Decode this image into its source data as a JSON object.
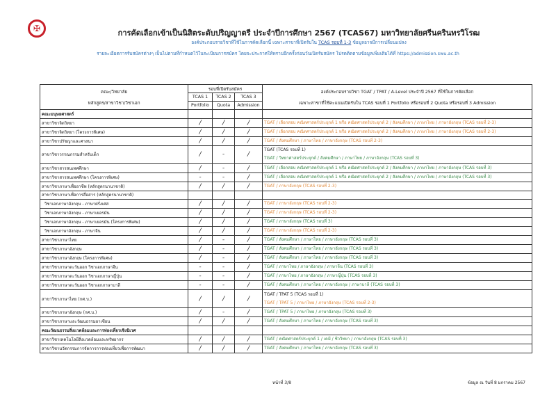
{
  "header": {
    "logo_text": "มศว",
    "title": "การคัดเลือกเข้าเป็นนิสิตระดับปริญญาตรี ประจำปีการศึกษา 2567 (TCAS67)  มหาวิทยาลัยศรีนครินทรวิโรฒ",
    "sub1_a": "องค์ประกอบรายวิชาที่ใช้ในการคัดเลือกนี้ เฉพาะสาขาที่เปิดรับใน ",
    "sub1_link": "TCAS รอบที่ 1-3",
    "sub1_b": " ข้อมูลอาจมีการเปลี่ยนแปลง",
    "sub2": "รายละเอียดการรับสมัครต่างๆ เป็นไปตามที่กำหนดไว้ในระเบียบการสมัคร โดยจะประกาศให้ทราบอีกครั้งก่อนวันเปิดรับสมัคร  โปรดติดตามข้อมูลเพิ่มเติมได้ที่ https://admission.swu.ac.th"
  },
  "table_header": {
    "col1_a": "คณะ/วิทยาลัย",
    "col1_b": "หลักสูตร/สาขาวิชา/วิชาเอก",
    "rounds": "รอบที่เปิดรับสมัคร",
    "t1": "TCAS 1",
    "t2": "TCAS 2",
    "t3": "TCAS 3",
    "t1b": "Portfolio",
    "t2b": "Quota",
    "t3b": "Admission",
    "subj_a": "องค์ประกอบรายวิชา TGAT / TPAT / A-Level ประจำปี 2567 ที่ใช้ในการคัดเลือก",
    "subj_b": "เฉพาะสาขาที่ใช้คะแนนเปิดรับใน TCAS รอบที่ 1 Portfolio หรือรอบที่ 2 Quota หรือรอบที่ 3 Admission"
  },
  "colors": {
    "orange": "#e08a3c",
    "green": "#3a8a4a",
    "blue": "#2d6fb5",
    "logo_red": "#c8202a"
  },
  "rows": [
    {
      "name": "คณะมนุษยศาสตร์",
      "type": "group",
      "marks": [
        "",
        "",
        ""
      ],
      "subjects": []
    },
    {
      "name": "สาขาวิชาจิตวิทยา",
      "marks": [
        "/",
        "/",
        "/"
      ],
      "subjects": [
        {
          "text": "TGAT  /  เลือกสอบ คณิตศาสตร์ประยุกต์ 1 หรือ คณิตศาสตร์ประยุกต์ 2  /  สังคมศึกษา  /  ภาษาไทย  /  ภาษาอังกฤษ  (TCAS รอบที่ 2-3)",
          "color": "orange"
        }
      ]
    },
    {
      "name": "สาขาวิชาจิตวิทยา (โครงการพิเศษ)",
      "marks": [
        "/",
        "/",
        "/"
      ],
      "subjects": [
        {
          "text": "TGAT  /  เลือกสอบ คณิตศาสตร์ประยุกต์ 1 หรือ คณิตศาสตร์ประยุกต์ 2  /  สังคมศึกษา  /  ภาษาไทย  /  ภาษาอังกฤษ  (TCAS รอบที่ 2-3)",
          "color": "orange"
        }
      ]
    },
    {
      "name": "สาขาวิชาปรัชญาและศาสนา",
      "marks": [
        "/",
        "/",
        "/"
      ],
      "subjects": [
        {
          "text": "TGAT  /  สังคมศึกษา  /  ภาษาไทย  /  ภาษาอังกฤษ   (TCAS รอบที่ 2-3)",
          "color": "orange"
        }
      ]
    },
    {
      "name": "สาขาวิชาวรรณกรรมสำหรับเด็ก",
      "marks": [
        "/",
        "-",
        "/"
      ],
      "subjects": [
        {
          "text": "TGAT   (TCAS รอบที่ 1)",
          "color": "black"
        },
        {
          "text": "TGAT  /  วิทยาศาสตร์ประยุกต์  /  สังคมศึกษา  /  ภาษาไทย  /  ภาษาอังกฤษ  (TCAS รอบที่ 3)",
          "color": "green"
        }
      ]
    },
    {
      "name": "สาขาวิชาสารสนเทศศึกษา",
      "marks": [
        "/",
        "-",
        "/"
      ],
      "subjects": [
        {
          "text": "TGAT  /  เลือกสอบ คณิตศาสตร์ประยุกต์ 1 หรือ คณิตศาสตร์ประยุกต์ 2  /  สังคมศึกษา  /  ภาษาไทย  /  ภาษาอังกฤษ  (TCAS รอบที่ 3)",
          "color": "green"
        }
      ]
    },
    {
      "name": "สาขาวิชาสารสนเทศศึกษา  (โครงการพิเศษ)",
      "marks": [
        "-",
        "-",
        "/"
      ],
      "subjects": [
        {
          "text": "TGAT  /  เลือกสอบ คณิตศาสตร์ประยุกต์ 1 หรือ คณิตศาสตร์ประยุกต์ 2  /  สังคมศึกษา  /  ภาษาไทย  /  ภาษาอังกฤษ  (TCAS รอบที่ 3)",
          "color": "green"
        }
      ]
    },
    {
      "name": "สาขาวิชาภาษาเพื่ออาชีพ  (หลักสูตรนานาชาติ)",
      "marks": [
        "/",
        "/",
        "/"
      ],
      "subjects": [
        {
          "text": "TGAT  /  ภาษาอังกฤษ   (TCAS รอบที่ 2-3)",
          "color": "orange"
        }
      ]
    },
    {
      "name": "สาขาวิชาภาษาเพื่อการสื่อสาร (หลักสูตรนานาชาติ)",
      "marks": [
        "",
        "",
        ""
      ],
      "subjects": []
    },
    {
      "name": "วิชาเอกภาษาอังกฤษ - ภาษาฝรั่งเศส",
      "type": "indent",
      "marks": [
        "/",
        "/",
        "/"
      ],
      "subjects": [
        {
          "text": "TGAT  /  ภาษาอังกฤษ   (TCAS รอบที่ 2-3)",
          "color": "orange"
        }
      ]
    },
    {
      "name": "วิชาเอกภาษาอังกฤษ - ภาษาเยอรมัน",
      "type": "indent",
      "marks": [
        "/",
        "/",
        "/"
      ],
      "subjects": [
        {
          "text": "TGAT  /  ภาษาอังกฤษ   (TCAS รอบที่ 2-3)",
          "color": "orange"
        }
      ]
    },
    {
      "name": "วิชาเอกภาษาอังกฤษ - ภาษาเยอรมัน (โครงการพิเศษ)",
      "type": "indent",
      "marks": [
        "/",
        "/",
        "/"
      ],
      "subjects": [
        {
          "text": "TGAT  /  ภาษาอังกฤษ   (TCAS รอบที่ 3)",
          "color": "green"
        }
      ]
    },
    {
      "name": "วิชาเอกภาษาอังกฤษ - ภาษาจีน",
      "type": "indent",
      "marks": [
        "/",
        "/",
        "/"
      ],
      "subjects": [
        {
          "text": "TGAT  /  ภาษาอังกฤษ   (TCAS รอบที่ 2-3)",
          "color": "orange"
        }
      ]
    },
    {
      "name": "สาขาวิชาภาษาไทย",
      "marks": [
        "/",
        "-",
        "/"
      ],
      "subjects": [
        {
          "text": "TGAT  /  สังคมศึกษา  /  ภาษาไทย  /  ภาษาอังกฤษ   (TCAS รอบที่ 3)",
          "color": "green"
        }
      ]
    },
    {
      "name": "สาขาวิชาภาษาอังกฤษ",
      "marks": [
        "/",
        "-",
        "/"
      ],
      "subjects": [
        {
          "text": "TGAT  /  สังคมศึกษา  /  ภาษาไทย  /  ภาษาอังกฤษ   (TCAS รอบที่ 3)",
          "color": "green"
        }
      ]
    },
    {
      "name": "สาขาวิชาภาษาอังกฤษ  (โครงการพิเศษ)",
      "marks": [
        "/",
        "-",
        "/"
      ],
      "subjects": [
        {
          "text": "TGAT  /  สังคมศึกษา  /  ภาษาไทย  /  ภาษาอังกฤษ   (TCAS รอบที่ 3)",
          "color": "green"
        }
      ]
    },
    {
      "name": "สาขาวิชาภาษาตะวันออก วิชาเอกภาษาจีน",
      "marks": [
        "-",
        "-",
        "/"
      ],
      "subjects": [
        {
          "text": "TGAT  /  ภาษาไทย  /  ภาษาอังกฤษ  /  ภาษาจีน  (TCAS รอบที่ 3)",
          "color": "green"
        }
      ]
    },
    {
      "name": "สาขาวิชาภาษาตะวันออก วิชาเอกภาษาญี่ปุ่น",
      "marks": [
        "-",
        "-",
        "/"
      ],
      "subjects": [
        {
          "text": "TGAT  /  ภาษาไทย  /  ภาษาอังกฤษ  /  ภาษาญี่ปุ่น  (TCAS รอบที่ 3)",
          "color": "green"
        }
      ]
    },
    {
      "name": "สาขาวิชาภาษาตะวันออก วิชาเอกภาษาบาลี",
      "marks": [
        "-",
        "-",
        "/"
      ],
      "subjects": [
        {
          "text": "TGAT  /  สังคมศึกษา  /  ภาษาไทย  /  ภาษาอังกฤษ  /  ภาษาบาลี  (TCAS รอบที่ 3)",
          "color": "green"
        }
      ]
    },
    {
      "name": "สาขาวิชาภาษาไทย (กศ.บ.)",
      "marks": [
        "/",
        "/",
        "/"
      ],
      "subjects": [
        {
          "text": "TGAT  /  TPAT 5  (TCAS รอบที่ 1)",
          "color": "black"
        },
        {
          "text": "TGAT  /  TPAT 5  /  ภาษาไทย  /  ภาษาอังกฤษ  (TCAS รอบที่ 2-3)",
          "color": "orange"
        }
      ]
    },
    {
      "name": "สาขาวิชาภาษาอังกฤษ (กศ.บ.)",
      "marks": [
        "/",
        "-",
        "/"
      ],
      "subjects": [
        {
          "text": "TGAT  /  TPAT 5  /  ภาษาไทย  /  ภาษาอังกฤษ  (TCAS รอบที่ 3)",
          "color": "green"
        }
      ]
    },
    {
      "name": "สาขาวิชาภาษาและวัฒนธรรมอาเซียน",
      "marks": [
        "/",
        "/",
        "/"
      ],
      "subjects": [
        {
          "text": "TGAT  /  สังคมศึกษา  /  ภาษาไทย  /  ภาษาอังกฤษ   (TCAS รอบที่ 3)",
          "color": "green"
        }
      ]
    },
    {
      "name": "คณะวัฒนธรรมสิ่งแวดล้อมและการท่องเที่ยวเชิงนิเวศ",
      "type": "group",
      "marks": [
        "",
        "",
        ""
      ],
      "subjects": []
    },
    {
      "name": "สาขาวิชาเทคโนโลยีสิ่งแวดล้อมและทรัพยากร",
      "marks": [
        "/",
        "/",
        "/"
      ],
      "subjects": [
        {
          "text": "TGAT  /  คณิตศาสตร์ประยุกต์ 1  /  เคมี  /  ชีววิทยา  /  ภาษาอังกฤษ    (TCAS รอบที่ 3)",
          "color": "green"
        }
      ]
    },
    {
      "name": "สาขาวิชานวัตกรรมการจัดการการท่องเที่ยวเพื่อการพัฒนา",
      "marks": [
        "/",
        "/",
        "/"
      ],
      "subjects": [
        {
          "text": "TGAT  /  สังคมศึกษา  /  ภาษาไทย  /  ภาษาอังกฤษ   (TCAS รอบที่ 3)",
          "color": "green"
        }
      ]
    }
  ],
  "footer": {
    "page": "หน้าที่ 3/8",
    "date": "ข้อมูล ณ วันที่ 8 มกราคม 2567"
  }
}
